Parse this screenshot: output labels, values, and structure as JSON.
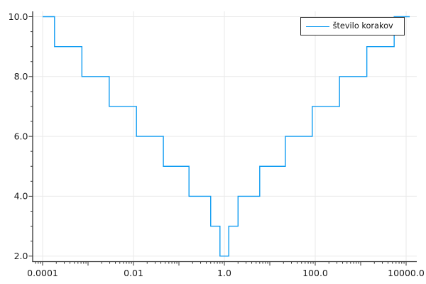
{
  "chart_data": {
    "type": "line",
    "subtype": "step",
    "title": "",
    "xlabel": "",
    "ylabel": "",
    "xscale": "log10",
    "grid": true,
    "legend_position": "top-right",
    "xlim": [
      6.04e-05,
      17160
    ],
    "ylim": [
      1.815,
      10.178
    ],
    "x_ticks": [
      {
        "value": 0.0001,
        "label": "0.0001"
      },
      {
        "value": 0.01,
        "label": "0.01"
      },
      {
        "value": 1,
        "label": "1.0"
      },
      {
        "value": 100,
        "label": "100.0"
      },
      {
        "value": 10000,
        "label": "10000.0"
      }
    ],
    "y_ticks": [
      {
        "value": 2,
        "label": "2.0"
      },
      {
        "value": 4,
        "label": "4.0"
      },
      {
        "value": 6,
        "label": "6.0"
      },
      {
        "value": 8,
        "label": "8.0"
      },
      {
        "value": 10,
        "label": "10.0"
      }
    ],
    "y_minor_step": 0.5,
    "legend": {
      "label": "število korakov"
    },
    "series": [
      {
        "name": "število korakov",
        "color": "#109CF2",
        "x_start": 0.0001,
        "x_end": 12000,
        "breakpoints": [
          0.000183,
          0.000732,
          0.002924,
          0.011628,
          0.045455,
          0.166667,
          0.5,
          0.8,
          1.25,
          2,
          6,
          22,
          86,
          342,
          1366,
          5462
        ],
        "levels": [
          10,
          9,
          8,
          7,
          6,
          5,
          4,
          3,
          2,
          3,
          4,
          5,
          6,
          7,
          8,
          9,
          10
        ]
      }
    ],
    "colors": {
      "series": "#109CF2",
      "grid": "#e9e9e9",
      "axis": "#333333",
      "text": "#1a1a1a",
      "background": "#ffffff"
    }
  }
}
